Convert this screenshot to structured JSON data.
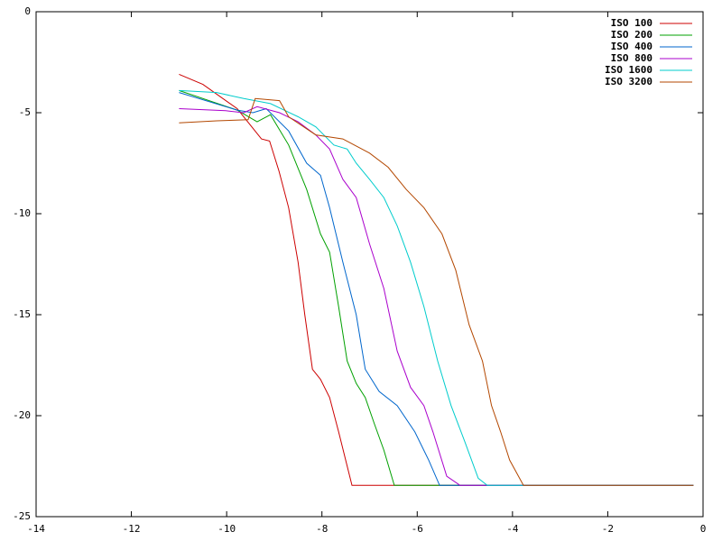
{
  "chart_data": {
    "type": "line",
    "xlim": [
      -14,
      0
    ],
    "xticks": [
      -14,
      -12,
      -10,
      -8,
      -6,
      -4,
      -2,
      0
    ],
    "ylim": [
      -25,
      0
    ],
    "yticks": [
      -25,
      -20,
      -15,
      -10,
      -5,
      0
    ],
    "legend": "top-right",
    "series": [
      {
        "name": "ISO 100",
        "color": "#cc0000",
        "x": [
          -11,
          -10.5,
          -9.78,
          -9.27,
          -9.1,
          -8.9,
          -8.7,
          -8.5,
          -8.36,
          -8.2,
          -8.03,
          -7.84,
          -7.65,
          -7.37,
          -0.2
        ],
        "values": [
          -3.1,
          -3.6,
          -4.8,
          -6.3,
          -6.4,
          -7.9,
          -9.7,
          -12.4,
          -15,
          -17.7,
          -18.2,
          -19.1,
          -20.8,
          -23.45,
          -23.45
        ]
      },
      {
        "name": "ISO 200",
        "color": "#00a000",
        "x": [
          -11,
          -9.78,
          -9.36,
          -9.08,
          -8.7,
          -8.32,
          -8.03,
          -7.84,
          -7.65,
          -7.47,
          -7.28,
          -7.09,
          -6.9,
          -6.7,
          -6.48,
          -0.2
        ],
        "values": [
          -3.9,
          -4.87,
          -5.45,
          -5.1,
          -6.6,
          -8.8,
          -11,
          -11.9,
          -14.6,
          -17.3,
          -18.4,
          -19.1,
          -20.4,
          -21.7,
          -23.45,
          -23.45
        ]
      },
      {
        "name": "ISO 400",
        "color": "#0066cc",
        "x": [
          -11,
          -9.78,
          -9.45,
          -9.17,
          -8.7,
          -8.32,
          -8.03,
          -7.84,
          -7.56,
          -7.28,
          -7.09,
          -6.8,
          -6.42,
          -6.05,
          -5.76,
          -5.53,
          -0.2
        ],
        "values": [
          -4.0,
          -4.87,
          -5.0,
          -4.8,
          -5.9,
          -7.5,
          -8.1,
          -9.7,
          -12.4,
          -15,
          -17.7,
          -18.8,
          -19.5,
          -20.8,
          -22.2,
          -23.45,
          -23.45
        ]
      },
      {
        "name": "ISO 800",
        "color": "#aa00cc",
        "x": [
          -11,
          -10.02,
          -9.64,
          -9.36,
          -8.89,
          -8.5,
          -8.13,
          -7.84,
          -7.56,
          -7.28,
          -7.0,
          -6.7,
          -6.42,
          -6.14,
          -5.86,
          -5.67,
          -5.38,
          -5.1,
          -0.2
        ],
        "values": [
          -4.8,
          -4.9,
          -5.0,
          -4.7,
          -5.0,
          -5.45,
          -6.1,
          -6.8,
          -8.3,
          -9.2,
          -11.5,
          -13.7,
          -16.8,
          -18.6,
          -19.5,
          -20.8,
          -23.0,
          -23.45,
          -23.45
        ]
      },
      {
        "name": "ISO 1600",
        "color": "#00cccc",
        "x": [
          -11,
          -10.21,
          -9.64,
          -9.08,
          -8.5,
          -8.13,
          -7.75,
          -7.47,
          -7.28,
          -7.0,
          -6.7,
          -6.42,
          -6.14,
          -5.86,
          -5.57,
          -5.29,
          -5.0,
          -4.72,
          -4.53,
          -0.2
        ],
        "values": [
          -3.9,
          -4.0,
          -4.3,
          -4.55,
          -5.2,
          -5.7,
          -6.6,
          -6.8,
          -7.5,
          -8.3,
          -9.2,
          -10.6,
          -12.4,
          -14.6,
          -17.3,
          -19.5,
          -21.3,
          -23.1,
          -23.45,
          -23.45
        ]
      },
      {
        "name": "ISO 3200",
        "color": "#b34700",
        "x": [
          -11,
          -10.21,
          -9.55,
          -9.4,
          -8.89,
          -8.7,
          -8.13,
          -7.56,
          -7.0,
          -6.61,
          -6.23,
          -5.86,
          -5.48,
          -5.19,
          -4.91,
          -4.63,
          -4.44,
          -4.25,
          -4.06,
          -3.77,
          -0.2
        ],
        "values": [
          -5.5,
          -5.4,
          -5.35,
          -4.3,
          -4.4,
          -5.2,
          -6.1,
          -6.3,
          -7.0,
          -7.7,
          -8.8,
          -9.7,
          -11.0,
          -12.8,
          -15.5,
          -17.3,
          -19.5,
          -20.8,
          -22.2,
          -23.45,
          -23.45
        ]
      }
    ]
  }
}
